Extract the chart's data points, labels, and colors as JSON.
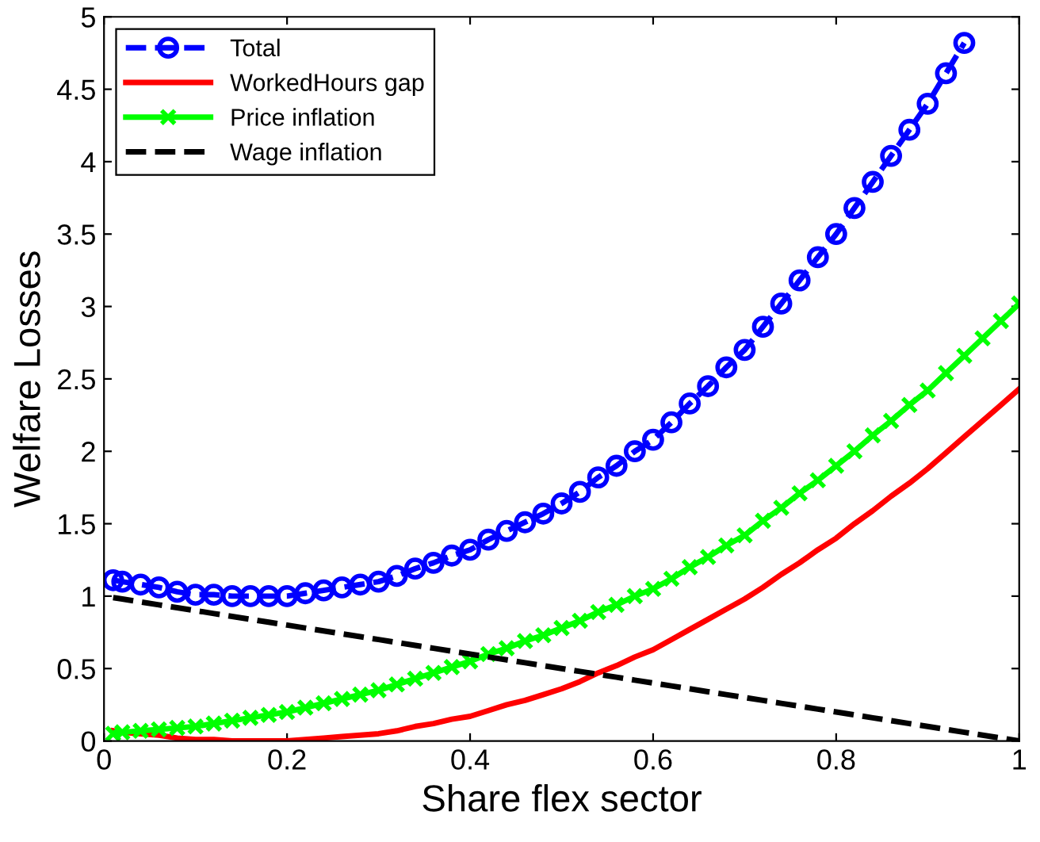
{
  "chart_data": {
    "type": "line",
    "xlabel": "Share flex sector",
    "ylabel": "Welfare Losses",
    "x": [
      0.01,
      0.02,
      0.04,
      0.06,
      0.08,
      0.1,
      0.12,
      0.14,
      0.16,
      0.18,
      0.2,
      0.22,
      0.24,
      0.26,
      0.28,
      0.3,
      0.32,
      0.34,
      0.36,
      0.38,
      0.4,
      0.42,
      0.44,
      0.46,
      0.48,
      0.5,
      0.52,
      0.54,
      0.56,
      0.58,
      0.6,
      0.62,
      0.64,
      0.66,
      0.68,
      0.7,
      0.72,
      0.74,
      0.76,
      0.78,
      0.8,
      0.82,
      0.84,
      0.86,
      0.88,
      0.9,
      0.92,
      0.94,
      0.96,
      0.98,
      1.0
    ],
    "series": [
      {
        "name": "Total",
        "color": "#0000ff",
        "line_style": "dashed",
        "marker": "circle",
        "values": [
          1.11,
          1.1,
          1.08,
          1.06,
          1.03,
          1.01,
          1.01,
          1.0,
          1.0,
          1.0,
          1.0,
          1.02,
          1.04,
          1.06,
          1.08,
          1.1,
          1.14,
          1.19,
          1.23,
          1.28,
          1.32,
          1.39,
          1.45,
          1.51,
          1.57,
          1.64,
          1.72,
          1.82,
          1.9,
          2.0,
          2.08,
          2.2,
          2.33,
          2.45,
          2.58,
          2.7,
          2.86,
          3.02,
          3.18,
          3.34,
          3.5,
          3.68,
          3.86,
          4.04,
          4.22,
          4.4,
          4.61,
          4.82,
          null,
          null,
          null
        ]
      },
      {
        "name": "WorkedHours gap",
        "color": "#ff0000",
        "line_style": "solid",
        "marker": "none",
        "values": [
          0.07,
          0.06,
          0.05,
          0.04,
          0.02,
          0.01,
          0.01,
          0.0,
          0.0,
          0.0,
          0.0,
          0.01,
          0.02,
          0.03,
          0.04,
          0.05,
          0.07,
          0.1,
          0.12,
          0.15,
          0.17,
          0.21,
          0.25,
          0.28,
          0.32,
          0.36,
          0.41,
          0.47,
          0.52,
          0.58,
          0.63,
          0.7,
          0.77,
          0.84,
          0.91,
          0.98,
          1.06,
          1.15,
          1.23,
          1.32,
          1.4,
          1.5,
          1.59,
          1.69,
          1.78,
          1.88,
          1.99,
          2.1,
          2.21,
          2.32,
          2.43
        ]
      },
      {
        "name": "Price inflation",
        "color": "#00ff00",
        "line_style": "solid",
        "marker": "cross",
        "values": [
          0.05,
          0.06,
          0.07,
          0.08,
          0.09,
          0.1,
          0.12,
          0.14,
          0.16,
          0.18,
          0.2,
          0.23,
          0.26,
          0.29,
          0.32,
          0.35,
          0.39,
          0.43,
          0.47,
          0.51,
          0.55,
          0.6,
          0.64,
          0.69,
          0.73,
          0.78,
          0.83,
          0.89,
          0.94,
          1.0,
          1.05,
          1.12,
          1.2,
          1.27,
          1.35,
          1.42,
          1.52,
          1.61,
          1.71,
          1.8,
          1.9,
          2.0,
          2.11,
          2.21,
          2.32,
          2.42,
          2.54,
          2.66,
          2.78,
          2.9,
          3.02
        ]
      },
      {
        "name": "Wage inflation",
        "color": "#000000",
        "line_style": "dashed",
        "marker": "none",
        "values": [
          0.99,
          0.98,
          0.96,
          0.94,
          0.92,
          0.9,
          0.88,
          0.86,
          0.84,
          0.82,
          0.8,
          0.78,
          0.76,
          0.74,
          0.72,
          0.7,
          0.68,
          0.66,
          0.64,
          0.62,
          0.6,
          0.58,
          0.56,
          0.54,
          0.52,
          0.5,
          0.48,
          0.46,
          0.44,
          0.42,
          0.4,
          0.38,
          0.36,
          0.34,
          0.32,
          0.3,
          0.28,
          0.26,
          0.24,
          0.22,
          0.2,
          0.18,
          0.16,
          0.14,
          0.12,
          0.1,
          0.08,
          0.06,
          0.04,
          0.02,
          0.0
        ]
      }
    ],
    "xlim": [
      0,
      1
    ],
    "xticks": [
      0,
      0.2,
      0.4,
      0.6,
      0.8,
      1
    ],
    "ylim": [
      0,
      5
    ],
    "yticks": [
      0,
      0.5,
      1,
      1.5,
      2,
      2.5,
      3,
      3.5,
      4,
      4.5,
      5
    ],
    "grid": false,
    "legend": "top left"
  }
}
